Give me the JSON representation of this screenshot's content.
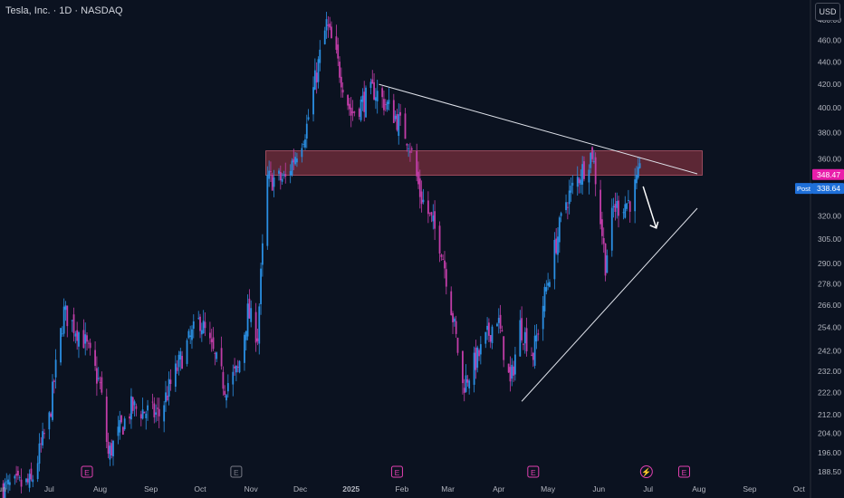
{
  "header": {
    "title": "Tesla, Inc. · 1D · NASDAQ",
    "currency": "USD"
  },
  "badges": {
    "last_price": "348.47",
    "post_label": "Post",
    "post_price": "338.64"
  },
  "colors": {
    "bg": "#0b1220",
    "up": "#2a8fe3",
    "down": "#c23da8",
    "zone": "#6b2c3a",
    "zone_edge": "#b7576a",
    "line": "#e0e3eb",
    "axis_text": "#b2b5be",
    "last_badge": "#e91eaa",
    "post_badge": "#1e6fd9"
  },
  "chart_data": {
    "type": "candlestick",
    "title": "Tesla, Inc. · 1D · NASDAQ",
    "y_scale": "log",
    "ylim": [
      186,
      500
    ],
    "y_ticks": [
      "188.50",
      "196.00",
      "204.00",
      "212.00",
      "222.00",
      "232.00",
      "242.00",
      "254.00",
      "266.00",
      "278.00",
      "290.00",
      "305.00",
      "320.00",
      "340.00",
      "360.00",
      "380.00",
      "400.00",
      "420.00",
      "440.00",
      "460.00",
      "480.00"
    ],
    "x_ticks": [
      "Jun",
      "Jul",
      "Aug",
      "Sep",
      "Oct",
      "Nov",
      "Dec",
      "2025",
      "Feb",
      "Mar",
      "Apr",
      "May",
      "Jun",
      "Jul",
      "Aug",
      "Sep",
      "Oct"
    ],
    "xlim": [
      "2024-06-01",
      "2025-10-08"
    ],
    "series_waypoints": [
      [
        "2024-06-01",
        182
      ],
      [
        "2024-06-20",
        184
      ],
      [
        "2024-07-01",
        210
      ],
      [
        "2024-07-10",
        262
      ],
      [
        "2024-07-22",
        248
      ],
      [
        "2024-08-01",
        225
      ],
      [
        "2024-08-06",
        195
      ],
      [
        "2024-08-20",
        215
      ],
      [
        "2024-09-06",
        212
      ],
      [
        "2024-09-23",
        245
      ],
      [
        "2024-10-01",
        258
      ],
      [
        "2024-10-10",
        238
      ],
      [
        "2024-10-16",
        225
      ],
      [
        "2024-10-24",
        232
      ],
      [
        "2024-10-30",
        262
      ],
      [
        "2024-11-05",
        250
      ],
      [
        "2024-11-11",
        345
      ],
      [
        "2024-11-22",
        345
      ],
      [
        "2024-12-05",
        385
      ],
      [
        "2024-12-17",
        475
      ],
      [
        "2025-01-01",
        395
      ],
      [
        "2025-01-15",
        415
      ],
      [
        "2025-01-27",
        395
      ],
      [
        "2025-02-05",
        375
      ],
      [
        "2025-02-12",
        335
      ],
      [
        "2025-02-25",
        300
      ],
      [
        "2025-03-10",
        225
      ],
      [
        "2025-03-20",
        240
      ],
      [
        "2025-03-31",
        260
      ],
      [
        "2025-04-08",
        225
      ],
      [
        "2025-04-14",
        255
      ],
      [
        "2025-04-22",
        240
      ],
      [
        "2025-05-01",
        280
      ],
      [
        "2025-05-12",
        330
      ],
      [
        "2025-05-28",
        365
      ],
      [
        "2025-06-05",
        290
      ],
      [
        "2025-06-10",
        325
      ],
      [
        "2025-06-20",
        330
      ],
      [
        "2025-06-26",
        348.47
      ]
    ],
    "annotations": {
      "resistance_zone": [
        348,
        366
      ],
      "upper_trendline": [
        [
          "2025-01-18",
          420
        ],
        [
          "2025-07-31",
          349
        ]
      ],
      "lower_trendline": [
        [
          "2025-04-15",
          218
        ],
        [
          "2025-07-31",
          325
        ]
      ],
      "arrow": [
        [
          "2025-06-28",
          340
        ],
        [
          "2025-07-06",
          312
        ]
      ]
    },
    "event_markers": [
      {
        "date": "2024-07-24",
        "label": "E"
      },
      {
        "date": "2024-10-23",
        "label": "E"
      },
      {
        "date": "2025-01-29",
        "label": "E"
      },
      {
        "date": "2025-04-22",
        "label": "E"
      },
      {
        "date": "2025-06-30",
        "label": "⚡"
      },
      {
        "date": "2025-07-23",
        "label": "E"
      }
    ]
  }
}
